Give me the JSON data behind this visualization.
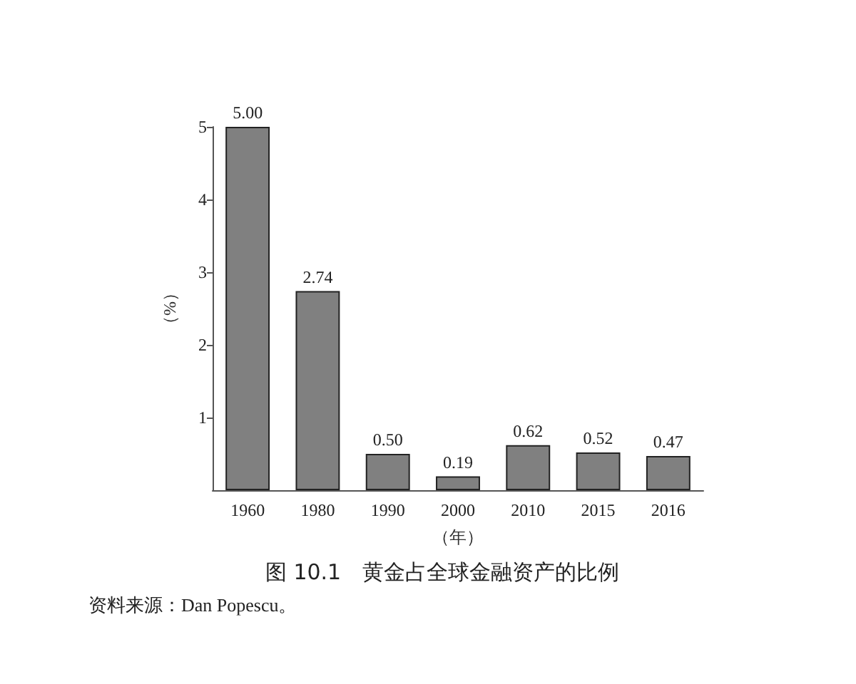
{
  "chart_data": {
    "type": "bar",
    "title": "图 10.1　黄金占全球金融资产的比例",
    "xlabel": "（年）",
    "ylabel": "（%）",
    "categories": [
      "1960",
      "1980",
      "1990",
      "2000",
      "2010",
      "2015",
      "2016"
    ],
    "values": [
      5.0,
      2.74,
      0.5,
      0.19,
      0.62,
      0.52,
      0.47
    ],
    "value_labels": [
      "5.00",
      "2.74",
      "0.50",
      "0.19",
      "0.62",
      "0.52",
      "0.47"
    ],
    "color": "#808080",
    "ylim": [
      0,
      5
    ],
    "yticks": [
      1,
      2,
      3,
      4,
      5
    ],
    "grid": false,
    "annotations": [
      "资料来源：Dan Popescu。"
    ]
  }
}
